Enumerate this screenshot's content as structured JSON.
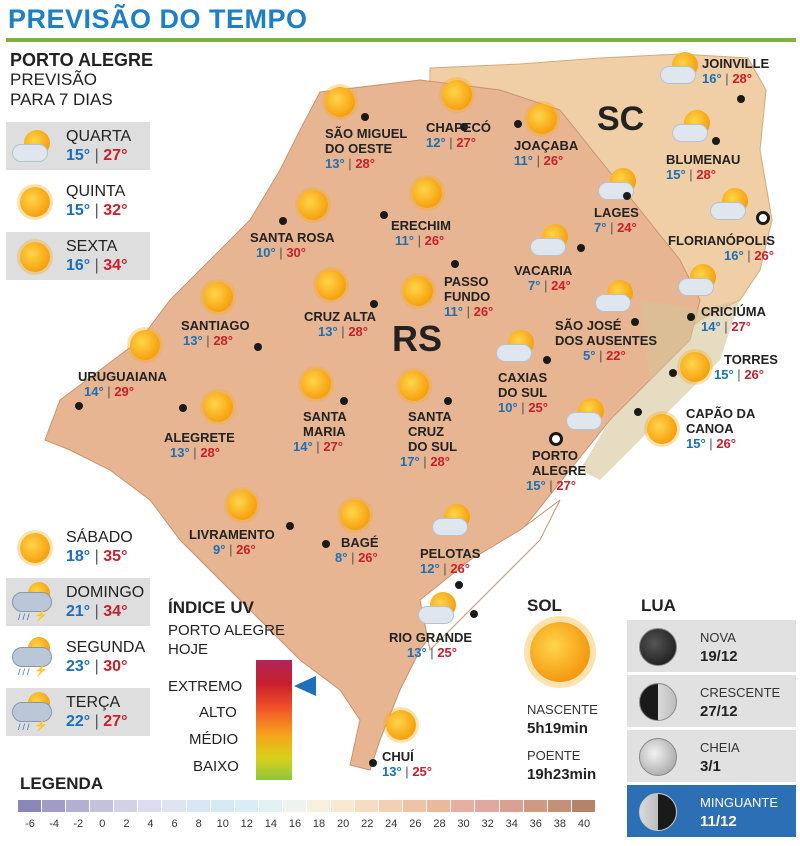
{
  "title": "PREVISÃO DO TEMPO",
  "side": {
    "city": "PORTO ALEGRE",
    "line1": "PREVISÃO",
    "line2": "PARA 7 DIAS"
  },
  "days": [
    {
      "name": "QUARTA",
      "min": "15°",
      "max": "27°",
      "icon": "partly-cloudy-icon"
    },
    {
      "name": "QUINTA",
      "min": "15°",
      "max": "32°",
      "icon": "sun-icon"
    },
    {
      "name": "SEXTA",
      "min": "16°",
      "max": "34°",
      "icon": "sun-icon"
    },
    {
      "name": "SÁBADO",
      "min": "18°",
      "max": "35°",
      "icon": "sun-icon"
    },
    {
      "name": "DOMINGO",
      "min": "21°",
      "max": "34°",
      "icon": "storm-icon"
    },
    {
      "name": "SEGUNDA",
      "min": "23°",
      "max": "30°",
      "icon": "storm-icon"
    },
    {
      "name": "TERÇA",
      "min": "22°",
      "max": "27°",
      "icon": "storm-icon"
    }
  ],
  "map": {
    "state_labels": [
      "SC",
      "RS"
    ],
    "cities": [
      {
        "name": "SÃO MIGUEL DO OESTE",
        "l1": "SÃO MIGUEL",
        "l2": "DO OESTE",
        "min": "13°",
        "max": "28°"
      },
      {
        "name": "CHAPECÓ",
        "min": "12°",
        "max": "27°"
      },
      {
        "name": "JOAÇABA",
        "min": "11°",
        "max": "26°"
      },
      {
        "name": "JOINVILLE",
        "min": "16°",
        "max": "28°"
      },
      {
        "name": "BLUMENAU",
        "min": "15°",
        "max": "28°"
      },
      {
        "name": "LAGES",
        "min": "7°",
        "max": "24°"
      },
      {
        "name": "FLORIANÓPOLIS",
        "min": "16°",
        "max": "26°"
      },
      {
        "name": "SANTA ROSA",
        "min": "10°",
        "max": "30°"
      },
      {
        "name": "ERECHIM",
        "min": "11°",
        "max": "26°"
      },
      {
        "name": "VACARIA",
        "min": "7°",
        "max": "24°"
      },
      {
        "name": "PASSO FUNDO",
        "l1": "PASSO",
        "l2": "FUNDO",
        "min": "11°",
        "max": "26°"
      },
      {
        "name": "CRICIÚMA",
        "min": "14°",
        "max": "27°"
      },
      {
        "name": "SANTIAGO",
        "min": "13°",
        "max": "28°"
      },
      {
        "name": "CRUZ ALTA",
        "min": "13°",
        "max": "28°"
      },
      {
        "name": "SÃO JOSÉ DOS AUSENTES",
        "l1": "SÃO JOSÉ",
        "l2": "DOS AUSENTES",
        "min": "5°",
        "max": "22°"
      },
      {
        "name": "TORRES",
        "min": "15°",
        "max": "26°"
      },
      {
        "name": "URUGUAIANA",
        "min": "14°",
        "max": "29°"
      },
      {
        "name": "CAXIAS DO SUL",
        "l1": "CAXIAS",
        "l2": "DO SUL",
        "min": "10°",
        "max": "25°"
      },
      {
        "name": "ALEGRETE",
        "min": "13°",
        "max": "28°"
      },
      {
        "name": "SANTA MARIA",
        "l1": "SANTA",
        "l2": "MARIA",
        "min": "14°",
        "max": "27°"
      },
      {
        "name": "SANTA CRUZ DO SUL",
        "l1": "SANTA",
        "l2": "CRUZ",
        "l3": "DO SUL",
        "min": "17°",
        "max": "28°"
      },
      {
        "name": "CAPÃO DA CANOA",
        "l1": "CAPÃO DA",
        "l2": "CANOA",
        "min": "15°",
        "max": "26°"
      },
      {
        "name": "PORTO ALEGRE",
        "l1": "PORTO",
        "l2": "ALEGRE",
        "min": "15°",
        "max": "27°"
      },
      {
        "name": "LIVRAMENTO",
        "min": "9°",
        "max": "26°"
      },
      {
        "name": "BAGÉ",
        "min": "8°",
        "max": "26°"
      },
      {
        "name": "PELOTAS",
        "min": "12°",
        "max": "26°"
      },
      {
        "name": "RIO GRANDE",
        "min": "13°",
        "max": "25°"
      },
      {
        "name": "CHUÍ",
        "min": "13°",
        "max": "25°"
      }
    ]
  },
  "uv": {
    "title": "ÍNDICE UV",
    "sub1": "PORTO ALEGRE",
    "sub2": "HOJE",
    "levels": [
      "EXTREMO",
      "ALTO",
      "MÉDIO",
      "BAIXO"
    ],
    "current": "EXTREMO"
  },
  "sol": {
    "title": "SOL",
    "rise_label": "NASCENTE",
    "rise": "5h19min",
    "set_label": "POENTE",
    "set": "19h23min"
  },
  "lua": {
    "title": "LUA",
    "phases": [
      {
        "name": "NOVA",
        "date": "19/12"
      },
      {
        "name": "CRESCENTE",
        "date": "27/12"
      },
      {
        "name": "CHEIA",
        "date": "3/1"
      },
      {
        "name": "MINGUANTE",
        "date": "11/12"
      }
    ],
    "current": "MINGUANTE"
  },
  "legend": {
    "title": "LEGENDA",
    "labels": [
      "-6",
      "-4",
      "-2",
      "0",
      "2",
      "4",
      "6",
      "8",
      "10",
      "12",
      "14",
      "16",
      "18",
      "20",
      "22",
      "24",
      "26",
      "28",
      "30",
      "32",
      "34",
      "36",
      "38",
      "40"
    ],
    "colors": [
      "#8a86b8",
      "#9f9cc6",
      "#b2b0d2",
      "#c3c1dc",
      "#d2d1e6",
      "#dcdcee",
      "#dfe3f2",
      "#d9e6f5",
      "#d6eaf6",
      "#d9eef4",
      "#e2f2f2",
      "#edf4ee",
      "#f5f1dd",
      "#f7ead0",
      "#f5ddc2",
      "#f2d0b2",
      "#efc4a5",
      "#eab89a",
      "#e6b0a0",
      "#e0a89e",
      "#d8a192",
      "#cf9984",
      "#c49077",
      "#b5836a"
    ]
  }
}
